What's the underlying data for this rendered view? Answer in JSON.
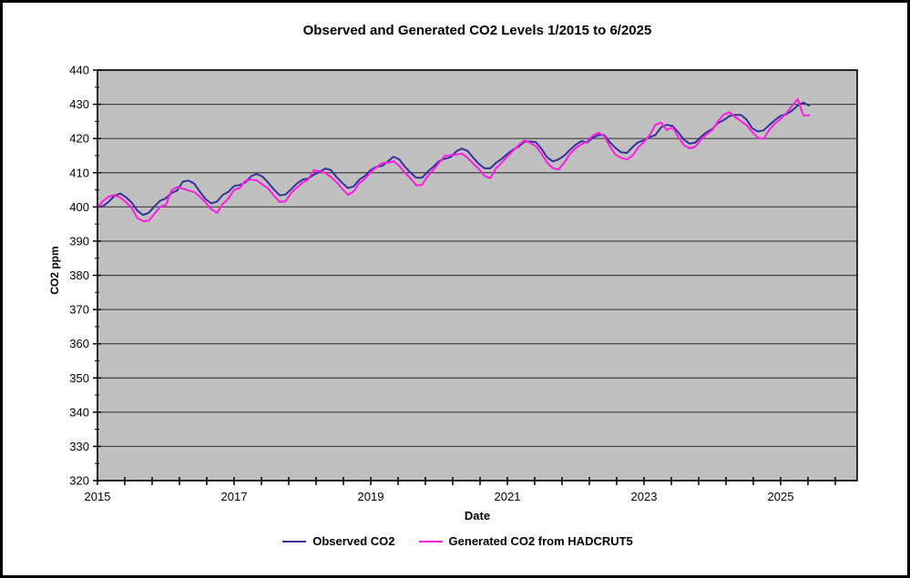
{
  "chart_data": {
    "type": "line",
    "title": "Observed and Generated CO2 Levels 1/2015 to 6/2025",
    "xlabel": "Date",
    "ylabel": "CO2 ppm",
    "x_start_year": 2015,
    "x_start_month": 1,
    "x_end_year": 2025,
    "x_end_month": 6,
    "x_unit": "month",
    "ylim": [
      320,
      440
    ],
    "xlim": [
      2015,
      2026.1
    ],
    "grid": "horizontal-only",
    "plot_bg_color": "#c0c0c0",
    "gridline_color": "#404040",
    "legend_position": "bottom",
    "yticks": [
      440,
      430,
      420,
      410,
      400,
      390,
      380,
      370,
      360,
      350,
      340,
      330,
      320
    ],
    "xticks": [
      2015,
      2017,
      2019,
      2021,
      2023,
      2025
    ],
    "series": [
      {
        "name": "Observed CO2",
        "color": "#333399",
        "values": [
          399.98,
          400.28,
          401.54,
          403.28,
          403.96,
          402.8,
          401.31,
          398.93,
          397.63,
          398.29,
          400.16,
          401.85,
          402.52,
          404.04,
          404.83,
          407.42,
          407.7,
          406.81,
          404.39,
          402.25,
          401.03,
          401.57,
          403.53,
          404.42,
          406.13,
          406.42,
          407.18,
          409.0,
          409.65,
          408.84,
          407.07,
          405.07,
          403.38,
          403.64,
          405.12,
          406.82,
          407.96,
          408.32,
          409.41,
          410.24,
          411.24,
          410.79,
          408.71,
          406.99,
          405.51,
          406.0,
          408.02,
          409.07,
          410.83,
          411.75,
          411.97,
          413.32,
          414.66,
          413.92,
          411.77,
          409.95,
          408.54,
          408.52,
          410.27,
          411.76,
          413.4,
          414.11,
          414.51,
          416.21,
          417.07,
          416.38,
          414.38,
          412.55,
          411.29,
          411.28,
          412.89,
          414.02,
          415.52,
          416.75,
          417.64,
          419.05,
          419.13,
          418.94,
          416.96,
          414.47,
          413.3,
          413.93,
          415.01,
          416.71,
          418.19,
          419.28,
          418.81,
          420.23,
          420.99,
          420.99,
          418.9,
          417.19,
          415.95,
          415.78,
          417.51,
          418.95,
          419.47,
          420.41,
          420.99,
          423.28,
          424.0,
          423.68,
          421.83,
          419.68,
          418.51,
          418.82,
          420.46,
          421.86,
          422.8,
          424.55,
          425.38,
          426.57,
          426.9,
          426.91,
          425.55,
          422.99,
          422.03,
          422.38,
          423.93,
          425.4,
          426.65,
          427.09,
          428.15,
          429.64,
          430.51,
          429.61
        ]
      },
      {
        "name": "Generated CO2 from HADCRUT5",
        "color": "#ff1ae6",
        "values": [
          399.98,
          401.78,
          403.04,
          403.48,
          402.76,
          401.4,
          399.71,
          396.73,
          395.83,
          395.99,
          397.96,
          400.05,
          400.52,
          404.84,
          405.83,
          405.32,
          404.8,
          404.31,
          402.99,
          401.25,
          399.33,
          398.27,
          400.83,
          402.52,
          404.93,
          405.62,
          407.68,
          408.0,
          407.75,
          406.54,
          405.37,
          403.27,
          401.48,
          401.64,
          404.02,
          405.62,
          407.06,
          408.02,
          410.71,
          410.44,
          409.94,
          408.79,
          407.21,
          405.29,
          403.51,
          404.5,
          407.02,
          408.27,
          410.23,
          411.55,
          412.87,
          412.92,
          413.36,
          412.02,
          409.97,
          408.35,
          406.34,
          406.42,
          408.97,
          410.76,
          412.9,
          414.91,
          415.11,
          415.31,
          415.57,
          414.38,
          412.68,
          411.05,
          409.09,
          408.38,
          411.29,
          412.92,
          414.72,
          416.45,
          418.04,
          419.45,
          418.73,
          417.74,
          415.56,
          412.87,
          411.3,
          410.93,
          413.01,
          415.51,
          417.19,
          418.38,
          419.11,
          420.83,
          421.69,
          420.69,
          417.7,
          415.29,
          414.35,
          413.88,
          415.01,
          417.45,
          418.97,
          421.01,
          423.99,
          424.68,
          422.5,
          423.28,
          420.53,
          418.08,
          417.11,
          417.62,
          419.66,
          421.26,
          422.5,
          425.05,
          426.98,
          427.67,
          426.3,
          425.11,
          423.95,
          421.89,
          420.23,
          419.88,
          422.53,
          424.4,
          425.75,
          427.39,
          429.55,
          431.54,
          426.71,
          426.81
        ]
      }
    ]
  }
}
